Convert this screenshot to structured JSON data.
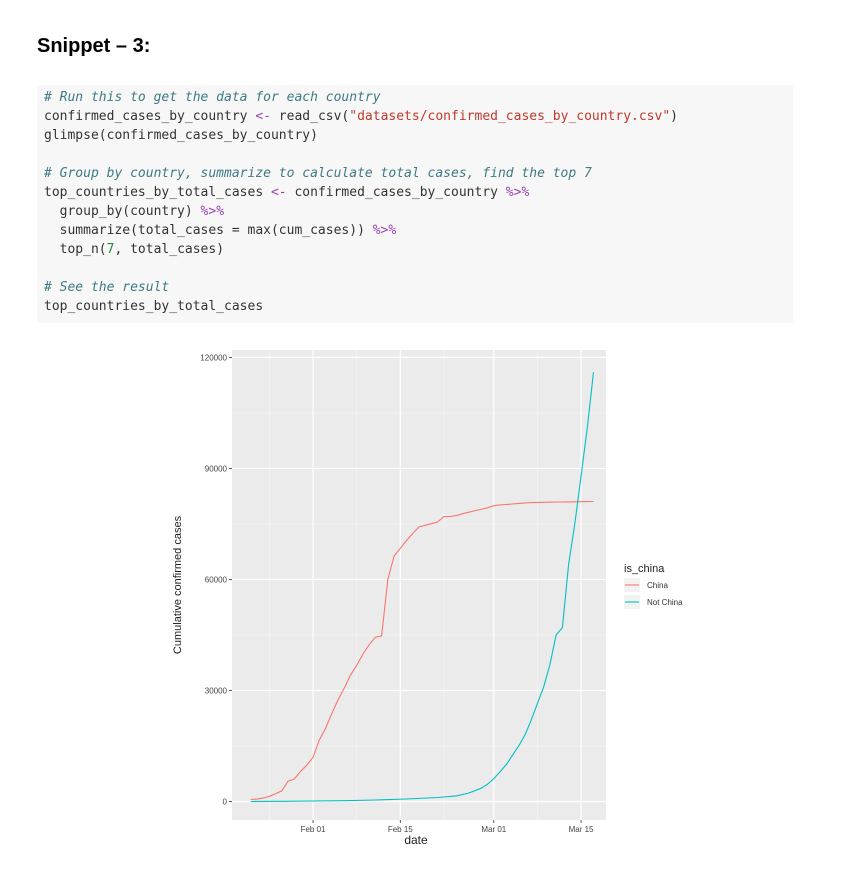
{
  "heading": "Snippet – 3:",
  "code": {
    "lines": [
      [
        {
          "t": "# Run this to get the data for each country",
          "c": "cm"
        }
      ],
      [
        {
          "t": "confirmed_cases_by_country ",
          "c": ""
        },
        {
          "t": "<-",
          "c": "op"
        },
        {
          "t": " read_csv(",
          "c": ""
        },
        {
          "t": "\"datasets/confirmed_cases_by_country.csv\"",
          "c": "str"
        },
        {
          "t": ")",
          "c": ""
        }
      ],
      [
        {
          "t": "glimpse(confirmed_cases_by_country)",
          "c": ""
        }
      ],
      [],
      [
        {
          "t": "# Group by country, summarize to calculate total cases, find the top 7",
          "c": "cm"
        }
      ],
      [
        {
          "t": "top_countries_by_total_cases ",
          "c": ""
        },
        {
          "t": "<-",
          "c": "op"
        },
        {
          "t": " confirmed_cases_by_country ",
          "c": ""
        },
        {
          "t": "%>%",
          "c": "op"
        }
      ],
      [
        {
          "t": "  group_by(country) ",
          "c": ""
        },
        {
          "t": "%>%",
          "c": "op"
        }
      ],
      [
        {
          "t": "  summarize(total_cases = max(cum_cases)) ",
          "c": ""
        },
        {
          "t": "%>%",
          "c": "op"
        }
      ],
      [
        {
          "t": "  top_n(",
          "c": ""
        },
        {
          "t": "7",
          "c": "num"
        },
        {
          "t": ", total_cases)",
          "c": ""
        }
      ],
      [],
      [
        {
          "t": "# See the result",
          "c": "cm"
        }
      ],
      [
        {
          "t": "top_countries_by_total_cases",
          "c": ""
        }
      ]
    ]
  },
  "chart_data": {
    "type": "line",
    "xlabel": "date",
    "ylabel": "Cumulative confirmed cases",
    "x_ticks": [
      "Feb 01",
      "Feb 15",
      "Mar 01",
      "Mar 15"
    ],
    "y_ticks": [
      "0",
      "30000",
      "60000",
      "90000",
      "120000"
    ],
    "ylim": [
      -5000,
      122000
    ],
    "xlim": [
      "2020-01-19",
      "2020-03-19"
    ],
    "grid": true,
    "legend": {
      "title": "is_china",
      "placement": "right"
    },
    "series": [
      {
        "name": "China",
        "color": "#f8766d",
        "points": [
          [
            "2020-01-22",
            548
          ],
          [
            "2020-01-23",
            643
          ],
          [
            "2020-01-24",
            920
          ],
          [
            "2020-01-25",
            1406
          ],
          [
            "2020-01-26",
            2075
          ],
          [
            "2020-01-27",
            2877
          ],
          [
            "2020-01-28",
            5509
          ],
          [
            "2020-01-29",
            6087
          ],
          [
            "2020-01-30",
            8141
          ],
          [
            "2020-01-31",
            9802
          ],
          [
            "2020-02-01",
            11891
          ],
          [
            "2020-02-02",
            16630
          ],
          [
            "2020-02-03",
            19716
          ],
          [
            "2020-02-04",
            23707
          ],
          [
            "2020-02-05",
            27440
          ],
          [
            "2020-02-06",
            30587
          ],
          [
            "2020-02-07",
            34110
          ],
          [
            "2020-02-08",
            36814
          ],
          [
            "2020-02-09",
            39829
          ],
          [
            "2020-02-10",
            42354
          ],
          [
            "2020-02-11",
            44386
          ],
          [
            "2020-02-12",
            44759
          ],
          [
            "2020-02-13",
            59895
          ],
          [
            "2020-02-14",
            66358
          ],
          [
            "2020-02-15",
            68413
          ],
          [
            "2020-02-16",
            70513
          ],
          [
            "2020-02-17",
            72434
          ],
          [
            "2020-02-18",
            74211
          ],
          [
            "2020-02-19",
            74619
          ],
          [
            "2020-02-20",
            75077
          ],
          [
            "2020-02-21",
            75550
          ],
          [
            "2020-02-22",
            77001
          ],
          [
            "2020-02-23",
            77022
          ],
          [
            "2020-02-24",
            77241
          ],
          [
            "2020-02-25",
            77754
          ],
          [
            "2020-02-26",
            78166
          ],
          [
            "2020-02-27",
            78600
          ],
          [
            "2020-02-28",
            78928
          ],
          [
            "2020-02-29",
            79356
          ],
          [
            "2020-03-01",
            79932
          ],
          [
            "2020-03-02",
            80136
          ],
          [
            "2020-03-03",
            80261
          ],
          [
            "2020-03-04",
            80386
          ],
          [
            "2020-03-05",
            80537
          ],
          [
            "2020-03-06",
            80690
          ],
          [
            "2020-03-07",
            80770
          ],
          [
            "2020-03-08",
            80823
          ],
          [
            "2020-03-09",
            80860
          ],
          [
            "2020-03-10",
            80887
          ],
          [
            "2020-03-11",
            80921
          ],
          [
            "2020-03-12",
            80932
          ],
          [
            "2020-03-13",
            80945
          ],
          [
            "2020-03-14",
            80977
          ],
          [
            "2020-03-15",
            81003
          ],
          [
            "2020-03-16",
            81033
          ],
          [
            "2020-03-17",
            81058
          ]
        ]
      },
      {
        "name": "Not China",
        "color": "#00bfc4",
        "points": [
          [
            "2020-01-22",
            7
          ],
          [
            "2020-01-27",
            56
          ],
          [
            "2020-02-01",
            137
          ],
          [
            "2020-02-06",
            216
          ],
          [
            "2020-02-11",
            393
          ],
          [
            "2020-02-16",
            683
          ],
          [
            "2020-02-21",
            1073
          ],
          [
            "2020-02-24",
            1500
          ],
          [
            "2020-02-26",
            2300
          ],
          [
            "2020-02-28",
            3600
          ],
          [
            "2020-02-29",
            4700
          ],
          [
            "2020-03-01",
            6200
          ],
          [
            "2020-03-02",
            8000
          ],
          [
            "2020-03-03",
            10000
          ],
          [
            "2020-03-04",
            12500
          ],
          [
            "2020-03-05",
            15000
          ],
          [
            "2020-03-06",
            18000
          ],
          [
            "2020-03-07",
            22000
          ],
          [
            "2020-03-08",
            26500
          ],
          [
            "2020-03-09",
            31000
          ],
          [
            "2020-03-10",
            37000
          ],
          [
            "2020-03-11",
            45000
          ],
          [
            "2020-03-12",
            47000
          ],
          [
            "2020-03-13",
            64000
          ],
          [
            "2020-03-14",
            75000
          ],
          [
            "2020-03-15",
            88000
          ],
          [
            "2020-03-16",
            101000
          ],
          [
            "2020-03-17",
            116000
          ]
        ]
      }
    ]
  }
}
